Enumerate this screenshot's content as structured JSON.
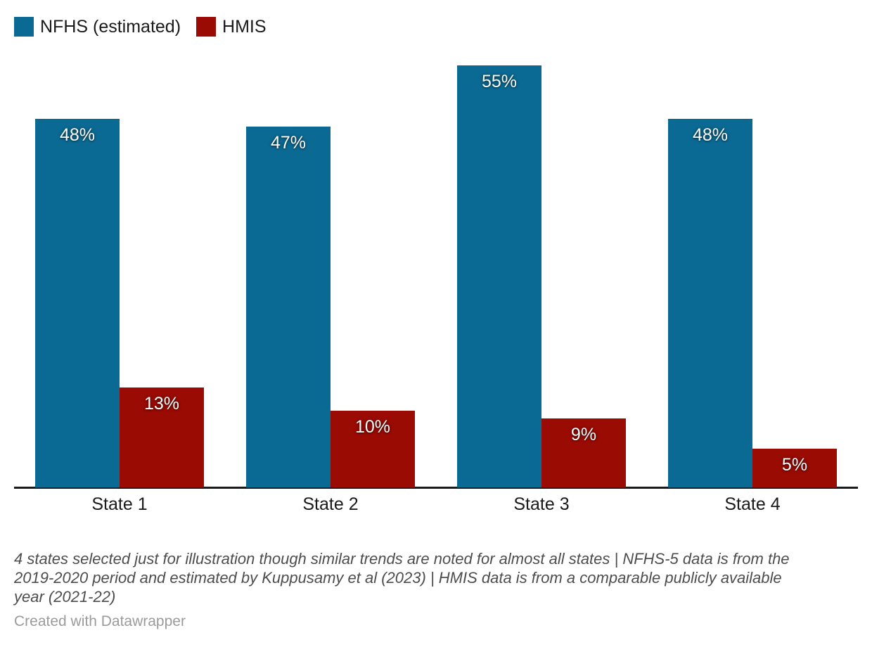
{
  "chart_data": {
    "type": "bar",
    "title": "",
    "categories": [
      "State 1",
      "State 2",
      "State 3",
      "State 4"
    ],
    "series": [
      {
        "key": "nfhs",
        "name": "NFHS (estimated)",
        "color": "#0b6a94",
        "values": [
          48,
          47,
          55,
          48
        ]
      },
      {
        "key": "hmis",
        "name": "HMIS",
        "color": "#9a0b04",
        "values": [
          13,
          10,
          9,
          5
        ]
      }
    ],
    "value_suffix": "%",
    "value_labels": "inside-top",
    "ylim": [
      0,
      55
    ],
    "grid": false,
    "legend_position": "top-left"
  },
  "footnote": {
    "lines": [
      "4 states selected just for illustration though similar trends are noted for almost all states | NFHS-5 data is from the",
      "2019-2020 period and estimated by Kuppusamy et al (2023) | HMIS data is from a comparable publicly available",
      "year (2021-22)"
    ],
    "text": "4 states selected just for illustration though similar trends are noted for almost all states | NFHS-5 data is from the 2019-2020 period and estimated by Kuppusamy et al (2023) | HMIS data is from a comparable publicly available year (2021-22)"
  },
  "attribution": {
    "text": "Created with Datawrapper"
  },
  "colors": {
    "nfhs_blue": "#0b6a94",
    "hmis_red": "#9a0b04",
    "axis_line": "#1a1a1a",
    "category_label": "#1a1a1a",
    "bar_value_label": "#ffffff",
    "footnote_text": "#4d4d4d",
    "attribution_text": "#9b9b9b",
    "background": "#ffffff"
  }
}
